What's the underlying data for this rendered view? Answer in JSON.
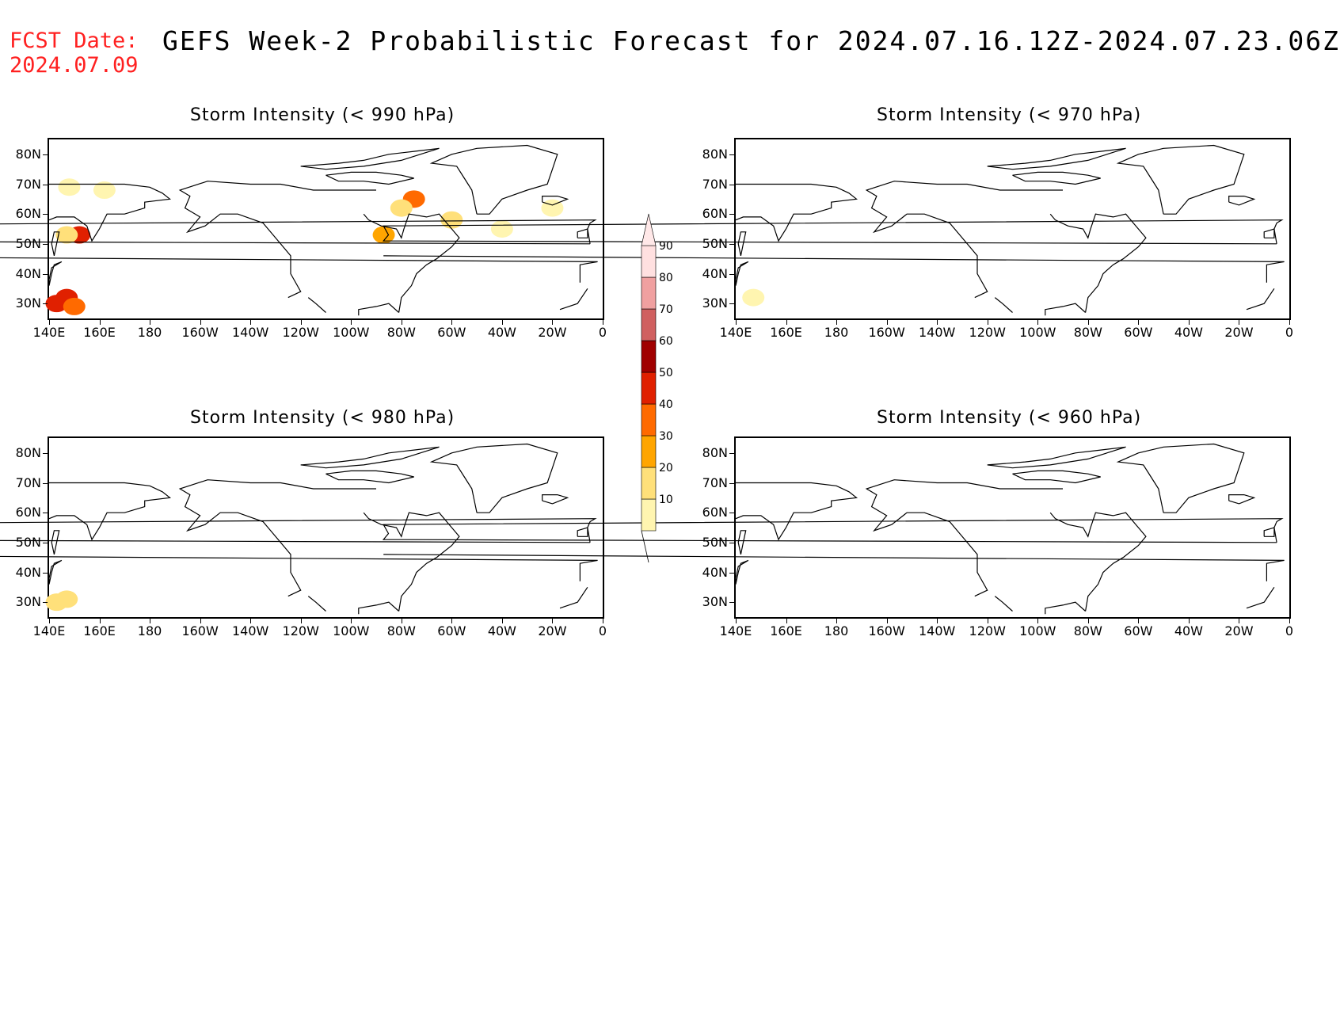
{
  "header": {
    "fcst_label": "FCST Date:",
    "fcst_date": "2024.07.09",
    "title": "GEFS Week-2 Probabilistic Forecast for 2024.07.16.12Z-2024.07.23.06Z"
  },
  "panels": [
    {
      "title": "Storm Intensity (< 990 hPa)"
    },
    {
      "title": "Storm Intensity (< 970 hPa)"
    },
    {
      "title": "Storm Intensity (< 980 hPa)"
    },
    {
      "title": "Storm Intensity (< 960 hPa)"
    }
  ],
  "axes": {
    "lat_labels": [
      "80N",
      "70N",
      "60N",
      "50N",
      "40N",
      "30N"
    ],
    "lon_labels": [
      "140E",
      "160E",
      "180",
      "160W",
      "140W",
      "120W",
      "100W",
      "80W",
      "60W",
      "40W",
      "20W",
      "0"
    ]
  },
  "colorbar": {
    "levels": [
      "10",
      "20",
      "30",
      "40",
      "50",
      "60",
      "70",
      "80",
      "90"
    ],
    "colors": [
      "#fff5b0",
      "#ffe07a",
      "#ffa500",
      "#ff6a00",
      "#e02000",
      "#a00000",
      "#d06060",
      "#f0a0a0",
      "#ffe0e0"
    ]
  },
  "chart_data": [
    {
      "type": "heatmap",
      "panel": "Storm Intensity (< 990 hPa)",
      "units": "percent probability",
      "cells": [
        {
          "lon": 143,
          "lat": 30,
          "value": 55
        },
        {
          "lon": 147,
          "lat": 32,
          "value": 50
        },
        {
          "lon": 150,
          "lat": 29,
          "value": 40
        },
        {
          "lon": 152,
          "lat": 53,
          "value": 50
        },
        {
          "lon": 147,
          "lat": 53,
          "value": 25
        },
        {
          "lon": 148,
          "lat": 69,
          "value": 15
        },
        {
          "lon": 162,
          "lat": 68,
          "value": 15
        },
        {
          "lon": -87,
          "lat": 53,
          "value": 30
        },
        {
          "lon": -75,
          "lat": 65,
          "value": 45
        },
        {
          "lon": -80,
          "lat": 62,
          "value": 25
        },
        {
          "lon": -60,
          "lat": 58,
          "value": 20
        },
        {
          "lon": -40,
          "lat": 55,
          "value": 15
        },
        {
          "lon": -20,
          "lat": 62,
          "value": 15
        }
      ]
    },
    {
      "type": "heatmap",
      "panel": "Storm Intensity (< 970 hPa)",
      "units": "percent probability",
      "cells": [
        {
          "lon": 147,
          "lat": 32,
          "value": 15
        }
      ]
    },
    {
      "type": "heatmap",
      "panel": "Storm Intensity (< 980 hPa)",
      "units": "percent probability",
      "cells": [
        {
          "lon": 143,
          "lat": 30,
          "value": 20
        },
        {
          "lon": 147,
          "lat": 31,
          "value": 25
        }
      ]
    },
    {
      "type": "heatmap",
      "panel": "Storm Intensity (< 960 hPa)",
      "units": "percent probability",
      "cells": []
    }
  ]
}
